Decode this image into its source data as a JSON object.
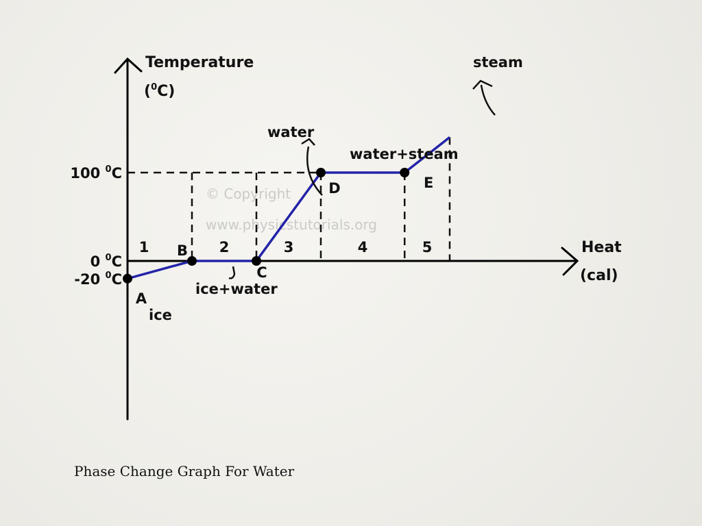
{
  "slide": {
    "caption": "Phase Change Graph For Water"
  },
  "chart_data": {
    "type": "line",
    "title": "",
    "ylabel_line1": "Temperature",
    "ylabel_line2_pre": "(",
    "ylabel_line2_sup": "0",
    "ylabel_line2_post": "C)",
    "xlabel_line1": "Heat",
    "xlabel_line2": "(cal)",
    "y_ticks": [
      {
        "value": 100,
        "num": "100 ",
        "sup": "0",
        "unit": "C"
      },
      {
        "value": 0,
        "num": "0 ",
        "sup": "0",
        "unit": "C"
      },
      {
        "value": -20,
        "num": "-20 ",
        "sup": "0",
        "unit": "C"
      }
    ],
    "points": [
      {
        "name": "A",
        "x": 0,
        "y": -20
      },
      {
        "name": "B",
        "x": 1,
        "y": 0
      },
      {
        "name": "C",
        "x": 2,
        "y": 0
      },
      {
        "name": "D",
        "x": 3,
        "y": 100
      },
      {
        "name": "E",
        "x": 4.3,
        "y": 100
      },
      {
        "name": "",
        "x": 5,
        "y": 140
      }
    ],
    "regions": [
      "1",
      "2",
      "3",
      "4",
      "5"
    ],
    "phase_labels": {
      "ice": "ice",
      "ice_water": "ice+water",
      "water": "water",
      "water_steam": "water+steam",
      "steam": "steam"
    },
    "watermark_line1": "© Copyright",
    "watermark_line2": "www.physicstutorials.org",
    "line_color": "#2323a8",
    "point_color": "#000000",
    "axis_color": "#000000"
  }
}
